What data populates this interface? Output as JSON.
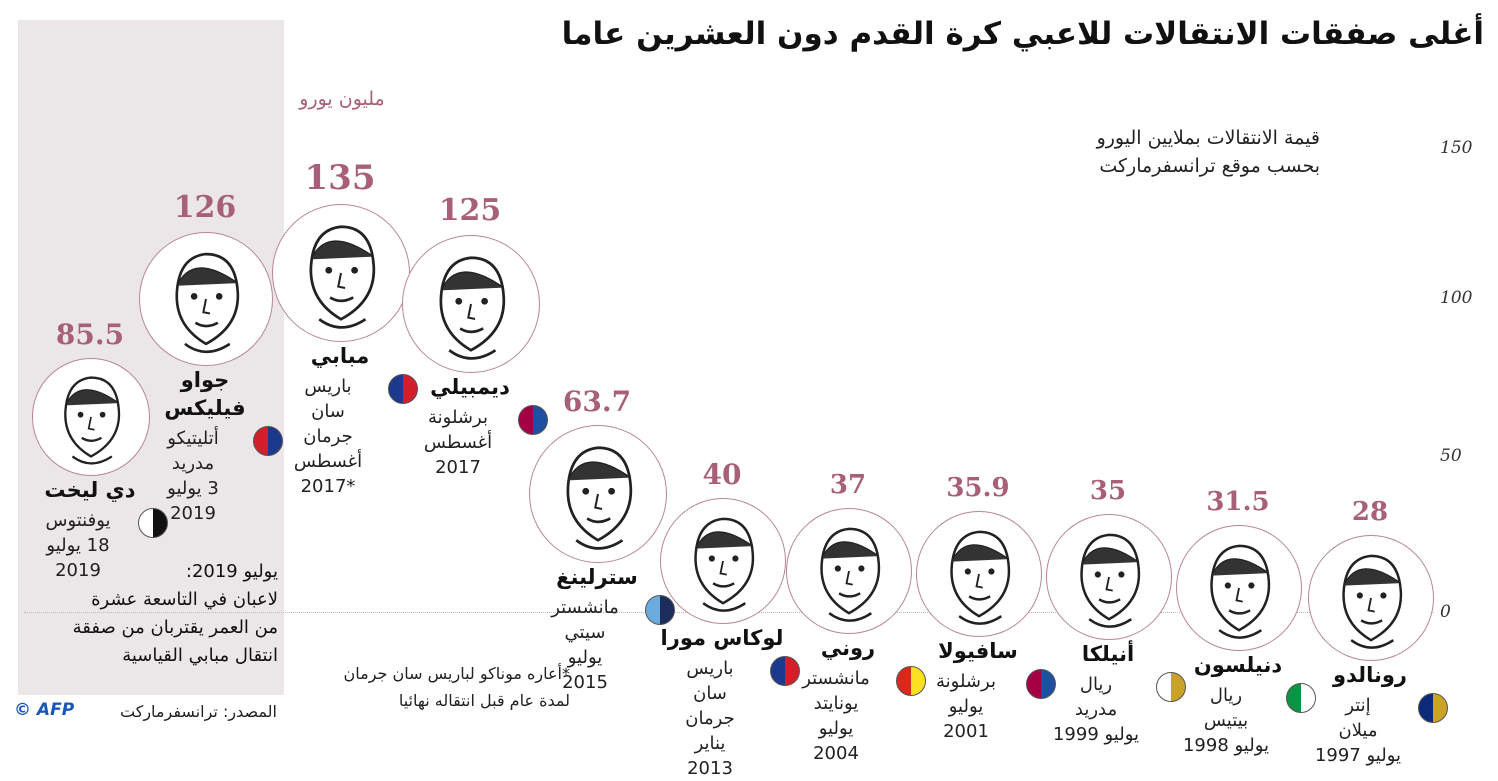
{
  "title": "أغلى صفقات الانتقالات للاعبي كرة القدم دون العشرين عاما",
  "subtitle_line1": "قيمة الانتقالات بملايين اليورو",
  "subtitle_line2": "بحسب موقع ترانسفرماركت",
  "unit_label": "مليون يورو",
  "y_ticks": [
    "150",
    "100",
    "50",
    "0"
  ],
  "note": "يوليو 2019:\nلاعبان في التاسعة عشرة\nمن العمر يقتربان من صفقة\nانتقال مبابي القياسية",
  "footnote": "*أعاره موناكو لباريس سان جرمان\nلمدة عام قبل انتقاله نهائيا",
  "source": "المصدر: ترانسفرماركت",
  "credit": "© AFP",
  "colors": {
    "accent": "#a8607a",
    "highlight": "#ebe6e7",
    "circle_border": "#b7869a"
  },
  "chart_data": {
    "type": "scatter",
    "ylim": [
      0,
      150
    ],
    "y_ticks": [
      0,
      50,
      100,
      150
    ],
    "grid": false,
    "points": [
      {
        "value": 85.5,
        "label": "85.5",
        "name": "دي ليخت",
        "club": "يوفنتوس\n18 يوليو\n2019",
        "logo": "juventus-logo"
      },
      {
        "value": 126,
        "label": "126",
        "name": "جواو\nفيليكس",
        "club": "أتليتيكو\nمدريد\n3 يوليو\n2019",
        "logo": "atletico-logo"
      },
      {
        "value": 135,
        "label": "135",
        "name": "مبابي",
        "club": "باريس\nسان\nجرمان\nأغسطس\n*2017",
        "logo": "psg-logo"
      },
      {
        "value": 125,
        "label": "125",
        "name": "ديمبيلي",
        "club": "برشلونة\nأغسطس\n2017",
        "logo": "barcelona-logo"
      },
      {
        "value": 63.7,
        "label": "63.7",
        "name": "سترلينغ",
        "club": "مانشستر\nسيتي\nيوليو\n2015",
        "logo": "mancity-logo"
      },
      {
        "value": 40,
        "label": "40",
        "name": "لوكاس مورا",
        "club": "باريس\nسان\nجرمان\nيناير\n2013",
        "logo": "psg-logo"
      },
      {
        "value": 37,
        "label": "37",
        "name": "روني",
        "club": "مانشستر\nيونايتد\nيوليو\n2004",
        "logo": "manutd-logo"
      },
      {
        "value": 35.9,
        "label": "35.9",
        "name": "سافيولا",
        "club": "برشلونة\nيوليو\n2001",
        "logo": "barcelona-logo"
      },
      {
        "value": 35,
        "label": "35",
        "name": "أنيلكا",
        "club": "ريال\nمدريد\nيوليو 1999",
        "logo": "realmadrid-logo"
      },
      {
        "value": 31.5,
        "label": "31.5",
        "name": "دنيلسون",
        "club": "ريال\nبيتيس\nيوليو 1998",
        "logo": "betis-logo"
      },
      {
        "value": 28,
        "label": "28",
        "name": "رونالدو",
        "club": "إنتر\nميلان\nيوليو 1997",
        "logo": "inter-logo"
      }
    ]
  }
}
